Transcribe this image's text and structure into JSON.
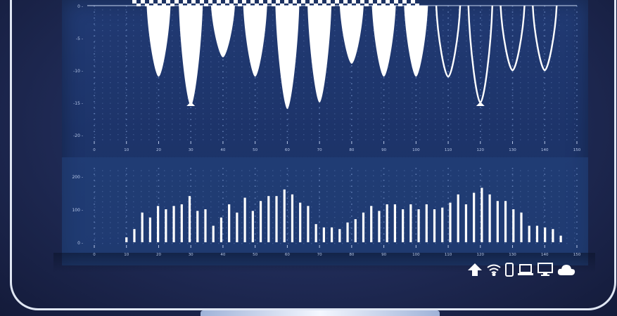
{
  "colors": {
    "background": "#1f2a55",
    "screen": "#1e366c",
    "foreground": "#ffffff",
    "grid": "#6f8cc4"
  },
  "top_chart": {
    "y_ticks": [
      "0 -",
      "-5 -",
      "-10 -",
      "-15 -",
      "-20 -"
    ],
    "x_ticks": [
      "0",
      "10",
      "20",
      "30",
      "40",
      "50",
      "60",
      "70",
      "80",
      "90",
      "100",
      "110",
      "120",
      "130",
      "140",
      "150"
    ]
  },
  "bottom_chart": {
    "y_ticks": [
      "200 -",
      "100 -",
      "0 -"
    ],
    "x_ticks": [
      "0",
      "10",
      "20",
      "30",
      "40",
      "50",
      "60",
      "70",
      "80",
      "90",
      "100",
      "110",
      "120",
      "130",
      "140",
      "150"
    ]
  },
  "chart_data": [
    {
      "type": "area",
      "style": "inverted spikes: first half filled, second half outlined",
      "ylim": [
        -20,
        0
      ],
      "xlim": [
        0,
        150
      ],
      "x": [
        20,
        30,
        40,
        50,
        60,
        70,
        80,
        90,
        100,
        110,
        120,
        130,
        140
      ],
      "values": [
        -11,
        -15.5,
        -8,
        -11,
        -16,
        -15,
        -9,
        -11,
        -11,
        -11,
        -15,
        -10,
        -10
      ],
      "markers_at_x": [
        30,
        120
      ]
    },
    {
      "type": "bar",
      "ylim": [
        0,
        200
      ],
      "xlim": [
        0,
        150
      ],
      "values": [
        15,
        40,
        90,
        75,
        110,
        100,
        110,
        115,
        140,
        95,
        100,
        50,
        75,
        115,
        90,
        135,
        95,
        125,
        140,
        140,
        160,
        145,
        120,
        110,
        55,
        45,
        45,
        40,
        60,
        70,
        90,
        110,
        95,
        115,
        115,
        100,
        115,
        100,
        115,
        100,
        105,
        120,
        145,
        115,
        150,
        165,
        145,
        125,
        125,
        100,
        90,
        50,
        50,
        45,
        40,
        20
      ]
    }
  ],
  "status_bar": {
    "icons": [
      "upload-icon",
      "wifi-icon",
      "phone-icon",
      "laptop-icon",
      "monitor-icon",
      "cloud-icon"
    ]
  }
}
